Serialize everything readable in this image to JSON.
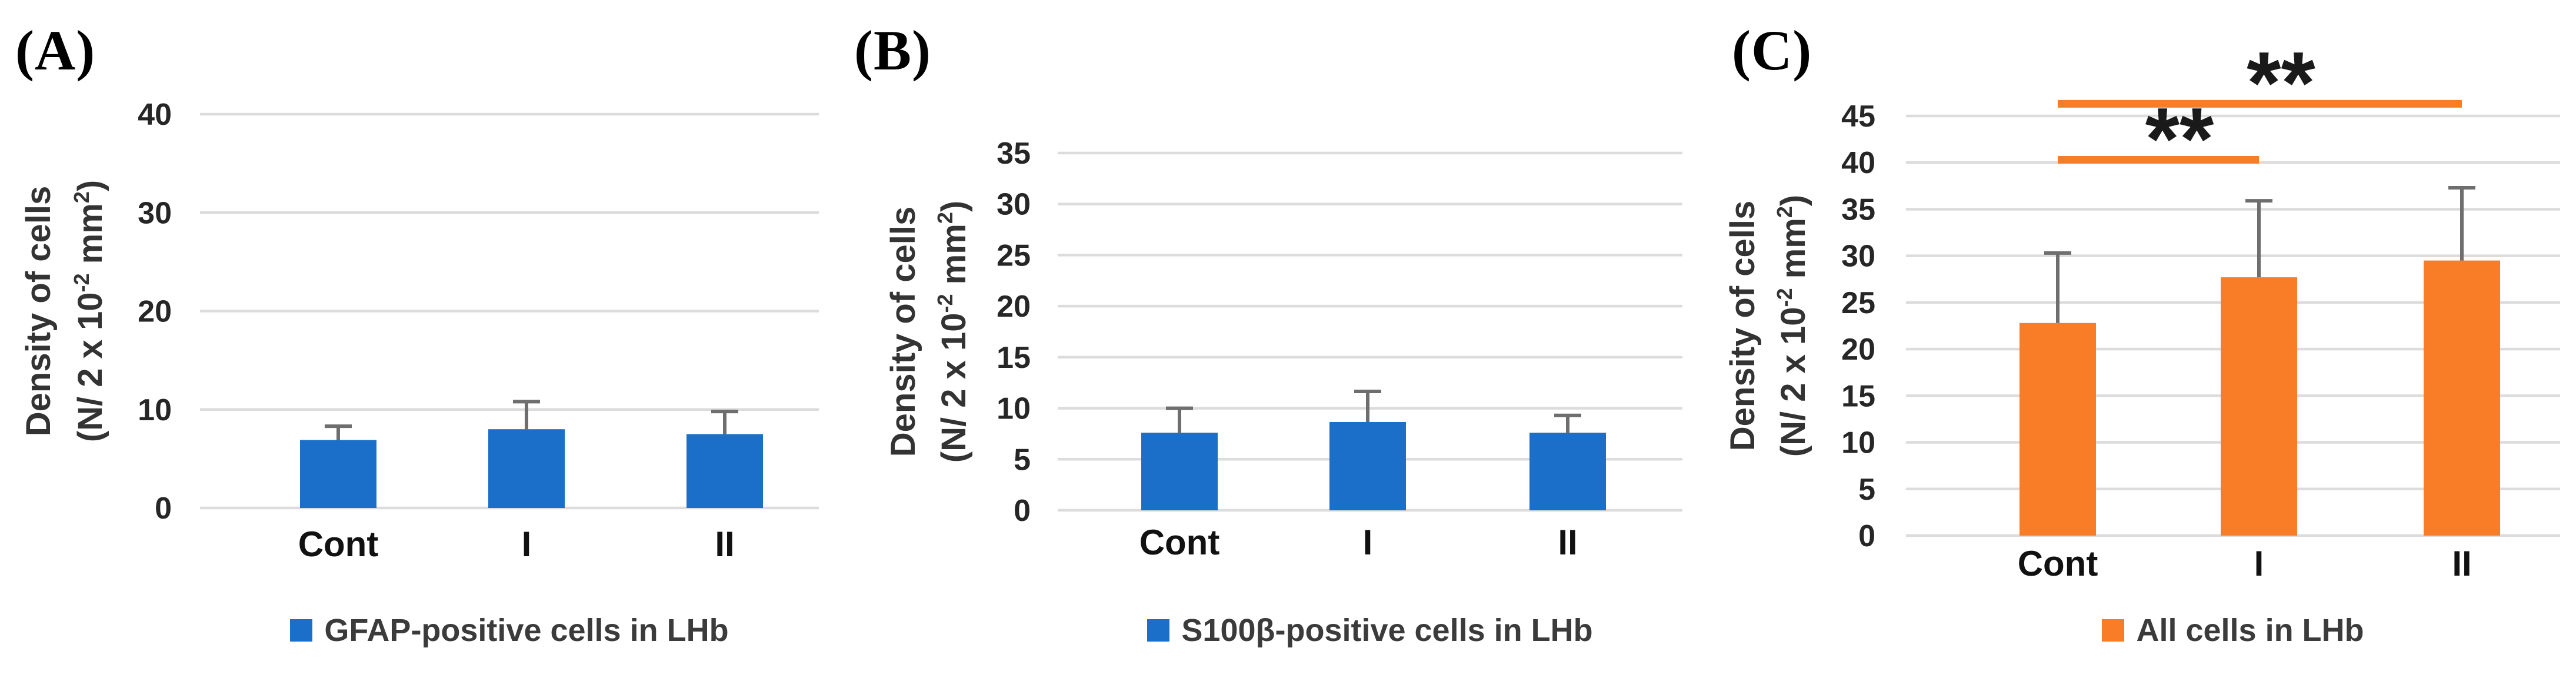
{
  "colors": {
    "blue_series": "#1c6fc8",
    "orange_series": "#f97d27",
    "gridline": "#dcdcdc",
    "error_bar": "#6e6e6e",
    "tick_text": "#262626",
    "category_text": "#111111",
    "axis_title_text": "#333333",
    "legend_text": "#3b3b3b",
    "significance_text": "#1a1a1a",
    "background": "#ffffff"
  },
  "chart_data": [
    {
      "panel_label": "(A)",
      "type": "bar",
      "title": "",
      "categories": [
        "Cont",
        "I",
        "II"
      ],
      "values": [
        6.9,
        8.0,
        7.5
      ],
      "errors_up": [
        1.4,
        2.8,
        2.3
      ],
      "ylim": [
        0,
        40
      ],
      "yticks": [
        0,
        10,
        20,
        30,
        40
      ],
      "grid": true,
      "legend_position": "bottom",
      "ylabel_line1": "Density of cells",
      "ylabel_line2": "(N/ 2 x 10⁻² mm²)",
      "ylabel_line2_tokens": [
        {
          "t": "(N/ 2 x 10"
        },
        {
          "t": "-2",
          "sup": true
        },
        {
          "t": " mm"
        },
        {
          "t": "2",
          "sup": true
        },
        {
          "t": ")"
        }
      ],
      "legend_label": "GFAP-positive cells in LHb",
      "series_color": "#1c6fc8",
      "significance": []
    },
    {
      "panel_label": "(B)",
      "type": "bar",
      "title": "",
      "categories": [
        "Cont",
        "I",
        "II"
      ],
      "values": [
        7.6,
        8.65,
        7.6
      ],
      "errors_up": [
        2.4,
        3.0,
        1.7
      ],
      "ylim": [
        0,
        35
      ],
      "yticks": [
        0,
        5,
        10,
        15,
        20,
        25,
        30,
        35
      ],
      "grid": true,
      "legend_position": "bottom",
      "ylabel_line1": "Density of cells",
      "ylabel_line2": "(N/ 2 x 10⁻² mm²)",
      "ylabel_line2_tokens": [
        {
          "t": "(N/ 2 x 10"
        },
        {
          "t": "-2",
          "sup": true
        },
        {
          "t": " mm"
        },
        {
          "t": "2",
          "sup": true
        },
        {
          "t": ")"
        }
      ],
      "legend_label": "S100β-positive cells in LHb",
      "series_color": "#1c6fc8",
      "significance": []
    },
    {
      "panel_label": "(C)",
      "type": "bar",
      "title": "",
      "categories": [
        "Cont",
        "I",
        "II"
      ],
      "values": [
        22.8,
        27.7,
        29.5
      ],
      "errors_up": [
        7.5,
        8.2,
        7.8
      ],
      "ylim": [
        0,
        45
      ],
      "yticks": [
        0,
        5,
        10,
        15,
        20,
        25,
        30,
        35,
        40,
        45
      ],
      "grid": true,
      "legend_position": "bottom",
      "ylabel_line1": "Density of cells",
      "ylabel_line2": "(N/ 2 x 10⁻² mm²)",
      "ylabel_line2_tokens": [
        {
          "t": "(N/ 2 x 10"
        },
        {
          "t": "-2",
          "sup": true
        },
        {
          "t": " mm"
        },
        {
          "t": "2",
          "sup": true
        },
        {
          "t": ")"
        }
      ],
      "legend_label": "All cells in LHb",
      "series_color": "#f97d27",
      "significance": [
        {
          "between": [
            "Cont",
            "I"
          ],
          "y": 40.3,
          "label": "**"
        },
        {
          "between": [
            "Cont",
            "II"
          ],
          "y": 46.3,
          "label": "**"
        }
      ]
    }
  ]
}
